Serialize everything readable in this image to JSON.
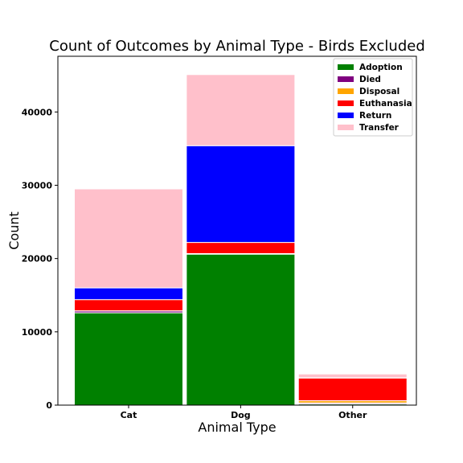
{
  "chart_data": {
    "type": "bar",
    "stacked": true,
    "title": "Count of Outcomes by Animal Type - Birds Excluded",
    "xlabel": "Animal Type",
    "ylabel": "Count",
    "categories": [
      "Cat",
      "Dog",
      "Other"
    ],
    "ylim": [
      0,
      47600
    ],
    "yticks": [
      0,
      10000,
      20000,
      30000,
      40000
    ],
    "legend_position": "top-right",
    "grid": false,
    "series": [
      {
        "name": "Adoption",
        "color": "#008000",
        "values": [
          12600,
          20600,
          150
        ]
      },
      {
        "name": "Died",
        "color": "#800080",
        "values": [
          250,
          60,
          150
        ]
      },
      {
        "name": "Disposal",
        "color": "#FFA500",
        "values": [
          20,
          20,
          300
        ]
      },
      {
        "name": "Euthanasia",
        "color": "#FF0000",
        "values": [
          1530,
          1520,
          3100
        ]
      },
      {
        "name": "Return",
        "color": "#0000FF",
        "values": [
          1600,
          13200,
          30
        ]
      },
      {
        "name": "Transfer",
        "color": "#FFC0CB",
        "values": [
          13500,
          9700,
          520
        ]
      }
    ]
  }
}
